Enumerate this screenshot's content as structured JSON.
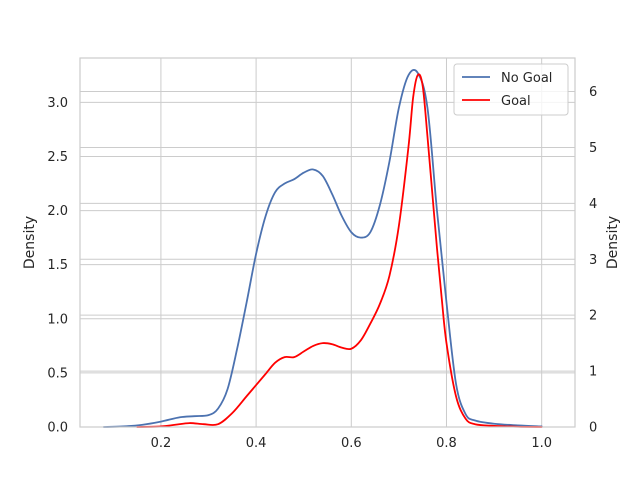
{
  "chart_data": {
    "type": "line",
    "grid": true,
    "legend_position": "top-right",
    "xlim": [
      0.03,
      1.07
    ],
    "x_ticks": [
      0.2,
      0.4,
      0.6,
      0.8,
      1.0
    ],
    "x_tick_labels": [
      "0.2",
      "0.4",
      "0.6",
      "0.8",
      "1.0"
    ],
    "y_left": {
      "label": "Density",
      "lim": [
        0,
        3.41
      ],
      "ticks": [
        0,
        0.5,
        1.0,
        1.5,
        2.0,
        2.5,
        3.0
      ],
      "tick_labels": [
        "0.0",
        "0.5",
        "1.0",
        "1.5",
        "2.0",
        "2.5",
        "3.0"
      ]
    },
    "y_right": {
      "label": "Density",
      "lim": [
        0,
        6.6
      ],
      "ticks": [
        0,
        1,
        2,
        3,
        4,
        5,
        6
      ],
      "tick_labels": [
        "0",
        "1",
        "2",
        "3",
        "4",
        "5",
        "6"
      ]
    },
    "series": [
      {
        "name": "No Goal",
        "axis": "left",
        "color": "#4c72b0",
        "x": [
          0.08,
          0.12,
          0.16,
          0.2,
          0.24,
          0.27,
          0.3,
          0.32,
          0.34,
          0.36,
          0.38,
          0.4,
          0.42,
          0.44,
          0.46,
          0.48,
          0.5,
          0.52,
          0.54,
          0.56,
          0.58,
          0.6,
          0.62,
          0.64,
          0.66,
          0.68,
          0.7,
          0.72,
          0.74,
          0.76,
          0.78,
          0.8,
          0.82,
          0.84,
          0.86,
          0.9,
          0.95,
          1.0
        ],
        "y": [
          0.0,
          0.005,
          0.02,
          0.05,
          0.09,
          0.1,
          0.11,
          0.17,
          0.35,
          0.72,
          1.15,
          1.6,
          1.95,
          2.17,
          2.25,
          2.29,
          2.35,
          2.38,
          2.32,
          2.15,
          1.95,
          1.8,
          1.75,
          1.8,
          2.05,
          2.45,
          2.95,
          3.25,
          3.27,
          2.95,
          2.0,
          1.15,
          0.4,
          0.12,
          0.06,
          0.03,
          0.015,
          0.005
        ]
      },
      {
        "name": "Goal",
        "axis": "right",
        "color": "#ff0000",
        "x": [
          0.15,
          0.2,
          0.23,
          0.26,
          0.29,
          0.32,
          0.35,
          0.38,
          0.4,
          0.42,
          0.44,
          0.46,
          0.48,
          0.5,
          0.52,
          0.54,
          0.56,
          0.58,
          0.6,
          0.62,
          0.64,
          0.66,
          0.68,
          0.7,
          0.72,
          0.73,
          0.74,
          0.75,
          0.76,
          0.77,
          0.78,
          0.79,
          0.8,
          0.82,
          0.84,
          0.86,
          0.9,
          0.95,
          1.0
        ],
        "y": [
          0.0,
          0.01,
          0.04,
          0.07,
          0.05,
          0.05,
          0.25,
          0.55,
          0.75,
          0.95,
          1.15,
          1.25,
          1.25,
          1.35,
          1.45,
          1.5,
          1.48,
          1.42,
          1.4,
          1.55,
          1.85,
          2.2,
          2.7,
          3.6,
          5.0,
          5.9,
          6.3,
          6.1,
          5.2,
          4.2,
          3.2,
          2.3,
          1.5,
          0.55,
          0.15,
          0.05,
          0.02,
          0.005,
          0.0
        ]
      }
    ]
  }
}
